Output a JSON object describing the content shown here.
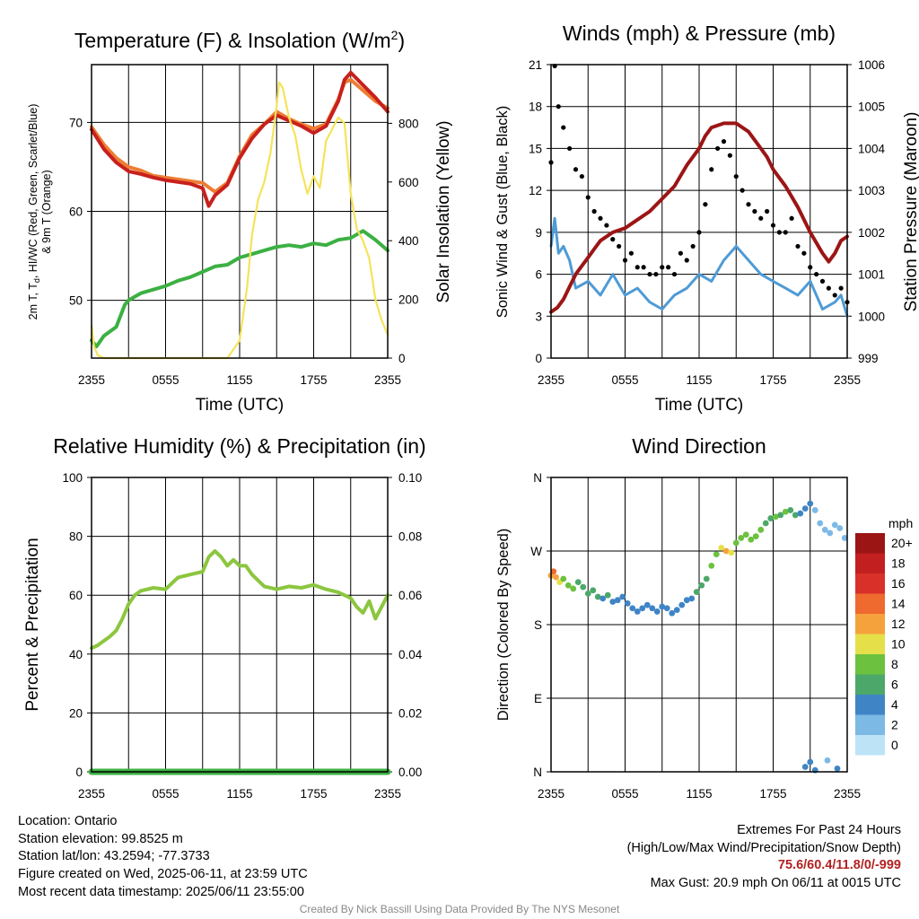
{
  "colors": {
    "temperature_red": "#c8201d",
    "temperature_orange": "#ee7d33",
    "dewpoint_green": "#3cb043",
    "insolation_yellow": "#f5e35a",
    "sonic_wind_blue": "#4e9bd6",
    "gust_black": "#000000",
    "pressure_maroon": "#9c1515",
    "humidity_green": "#8cc63f",
    "precip_green": "#3cb043"
  },
  "chart_data": [
    {
      "type": "line",
      "title": "Temperature (F) & Insolation (W/m²)",
      "xlabel": "Time (UTC)",
      "ylabel": "2m T, T_d, HI/WC (Red, Green, Scarlet/Blue) & 9m T (Orange)",
      "ylabel_line1": "2m T, T",
      "ylabel_sub": "d",
      "ylabel_line1_rest": ", HI/WC (Red, Green, Scarlet/Blue)",
      "ylabel_line2": "& 9m T (Orange)",
      "y2label": "Solar Insolation (Yellow)",
      "x_ticks": [
        "2355",
        "0555",
        "1155",
        "1755",
        "2355"
      ],
      "xlim": [
        0,
        24
      ],
      "ylim": [
        43.5,
        76.5
      ],
      "y_ticks": [
        50,
        60,
        70
      ],
      "y2lim": [
        0,
        1000
      ],
      "y2_ticks": [
        0,
        200,
        400,
        600,
        800
      ],
      "grid": true,
      "series": [
        {
          "name": "9m T",
          "color": "#ee7d33",
          "axis": "left",
          "x": [
            0,
            1,
            2,
            3,
            4,
            5,
            6,
            7,
            8,
            9,
            10,
            11,
            12,
            13,
            14,
            15,
            16,
            17,
            18,
            19,
            20,
            20.5,
            21,
            22,
            23,
            24
          ],
          "y": [
            69.5,
            67.5,
            66,
            65,
            64.6,
            64,
            63.8,
            63.6,
            63.4,
            63.2,
            62.2,
            63.2,
            66.2,
            68.6,
            69.8,
            71.2,
            70.4,
            69.8,
            69.3,
            69.8,
            72.6,
            74.5,
            74.8,
            73.6,
            72.4,
            71.6
          ]
        },
        {
          "name": "2m T",
          "color": "#c8201d",
          "axis": "left",
          "x": [
            0,
            1,
            2,
            3,
            4,
            5,
            6,
            7,
            8,
            9,
            9.5,
            10,
            11,
            12,
            13,
            14,
            15,
            16,
            17,
            18,
            19,
            20,
            20.5,
            21,
            22,
            23,
            24
          ],
          "y": [
            69.2,
            67,
            65.5,
            64.5,
            64.2,
            63.8,
            63.5,
            63.3,
            63.1,
            62.6,
            60.6,
            61.8,
            63,
            66,
            68.2,
            69.8,
            70.8,
            70.2,
            69.6,
            68.8,
            69.6,
            72.4,
            74.8,
            75.6,
            74.2,
            72.8,
            71.2
          ]
        },
        {
          "name": "Td",
          "color": "#3cb043",
          "axis": "left",
          "x": [
            0,
            0.4,
            1,
            1.5,
            2,
            2.7,
            3,
            3.5,
            4,
            5,
            6,
            7,
            8,
            9,
            10,
            11,
            12,
            13,
            14,
            15,
            16,
            17,
            18,
            19,
            20,
            21,
            22,
            23,
            24
          ],
          "y": [
            45.5,
            44.8,
            46,
            46.5,
            47,
            49.5,
            50,
            50.4,
            50.8,
            51.2,
            51.6,
            52.2,
            52.6,
            53.2,
            53.8,
            54,
            54.8,
            55.2,
            55.6,
            56,
            56.2,
            56,
            56.4,
            56.2,
            56.8,
            57,
            57.8,
            56.8,
            55.6
          ]
        },
        {
          "name": "Insolation",
          "color": "#f5e35a",
          "axis": "right",
          "x": [
            0,
            0.2,
            0.5,
            1,
            2,
            4,
            6,
            8,
            9,
            10,
            11,
            12,
            12.6,
            13,
            13.5,
            14,
            14.5,
            15,
            15.2,
            15.5,
            16,
            16.5,
            17,
            17.5,
            18,
            18.5,
            19,
            19.5,
            20,
            20.5,
            21,
            21.5,
            22,
            22.5,
            23,
            23.5,
            24
          ],
          "y": [
            110,
            40,
            10,
            0,
            0,
            0,
            0,
            0,
            0,
            0,
            0,
            60,
            240,
            420,
            540,
            600,
            700,
            860,
            940,
            920,
            820,
            760,
            640,
            560,
            620,
            580,
            740,
            780,
            820,
            800,
            560,
            440,
            400,
            340,
            200,
            130,
            80
          ]
        }
      ]
    },
    {
      "type": "line",
      "title": "Winds (mph) & Pressure (mb)",
      "xlabel": "Time (UTC)",
      "ylabel": "Sonic Wind & Gust (Blue, Black)",
      "y2label": "Station Pressure (Maroon)",
      "x_ticks": [
        "2355",
        "0555",
        "1155",
        "1755",
        "2355"
      ],
      "xlim": [
        0,
        24
      ],
      "ylim": [
        0,
        21
      ],
      "y_ticks": [
        0,
        3,
        6,
        9,
        12,
        15,
        18,
        21
      ],
      "y2lim": [
        999,
        1006
      ],
      "y2_ticks": [
        999,
        1000,
        1001,
        1002,
        1003,
        1004,
        1005,
        1006
      ],
      "grid": true,
      "series": [
        {
          "name": "Sonic Wind",
          "color": "#4e9bd6",
          "axis": "left",
          "x": [
            0,
            0.3,
            0.6,
            1,
            1.5,
            2,
            3,
            4,
            5,
            6,
            7,
            8,
            9,
            10,
            11,
            12,
            13,
            14,
            15,
            16,
            17,
            18,
            19,
            20,
            21,
            22,
            23,
            23.5,
            24
          ],
          "y": [
            8,
            10,
            7.5,
            8,
            7,
            5,
            5.5,
            4.5,
            6,
            4.5,
            5,
            4,
            3.5,
            4.5,
            5,
            6,
            5.5,
            7,
            8,
            7,
            6,
            5.5,
            5,
            4.5,
            5.5,
            3.5,
            4,
            4.5,
            3
          ]
        },
        {
          "name": "Gust",
          "color": "#000000",
          "axis": "left",
          "style": "points",
          "x": [
            0,
            0.3,
            0.6,
            1,
            1.5,
            2,
            2.5,
            3,
            3.5,
            4,
            4.5,
            5,
            5.5,
            6,
            6.5,
            7,
            7.5,
            8,
            8.5,
            9,
            9.5,
            10,
            10.5,
            11,
            11.5,
            12,
            12.5,
            13,
            13.5,
            14,
            14.5,
            15,
            15.5,
            16,
            16.5,
            17,
            17.5,
            18,
            18.5,
            19,
            19.5,
            20,
            20.5,
            21,
            21.5,
            22,
            22.5,
            23,
            23.5,
            24
          ],
          "y": [
            14,
            20.9,
            18,
            16.5,
            15,
            13.5,
            13,
            11.5,
            10.5,
            10,
            9.5,
            8.5,
            8,
            7,
            7.5,
            6.5,
            6.5,
            6,
            6,
            6.5,
            6.5,
            6,
            7.5,
            7,
            8,
            9,
            11,
            13.5,
            15,
            15.5,
            14.5,
            13,
            12,
            11,
            10.5,
            10,
            10.5,
            9.5,
            9,
            9,
            10,
            8,
            7.5,
            6.5,
            6,
            5.5,
            5,
            4.5,
            5,
            4
          ]
        },
        {
          "name": "Station Pressure",
          "color": "#9c1515",
          "axis": "right",
          "x": [
            0,
            0.5,
            1,
            1.5,
            2,
            2.5,
            3,
            3.5,
            4,
            5,
            6,
            7,
            8,
            9,
            10,
            11,
            12,
            12.5,
            13,
            14,
            15,
            16,
            16.5,
            17,
            17.5,
            18,
            19,
            20,
            21,
            22,
            22.5,
            23,
            23.5,
            24
          ],
          "y": [
            1000.1,
            1000.2,
            1000.4,
            1000.7,
            1001,
            1001.2,
            1001.4,
            1001.6,
            1001.8,
            1002,
            1002.1,
            1002.3,
            1002.5,
            1002.8,
            1003.1,
            1003.6,
            1004,
            1004.3,
            1004.5,
            1004.6,
            1004.6,
            1004.4,
            1004.2,
            1004,
            1003.8,
            1003.5,
            1003.1,
            1002.6,
            1002.0,
            1001.5,
            1001.3,
            1001.5,
            1001.8,
            1001.9
          ]
        }
      ]
    },
    {
      "type": "line",
      "title": "Relative Humidity (%) & Precipitation (in)",
      "xlabel": "",
      "ylabel": "Percent & Precipitation",
      "x_ticks": [
        "2355",
        "0555",
        "1155",
        "1755",
        "2355"
      ],
      "xlim": [
        0,
        24
      ],
      "ylim": [
        0,
        100
      ],
      "y_ticks": [
        0,
        20,
        40,
        60,
        80,
        100
      ],
      "y2lim": [
        0,
        0.1
      ],
      "y2_ticks": [
        "0.00",
        "0.02",
        "0.04",
        "0.06",
        "0.08",
        "0.10"
      ],
      "grid": true,
      "series": [
        {
          "name": "Relative Humidity",
          "color": "#8cc63f",
          "axis": "left",
          "x": [
            0,
            0.5,
            1,
            1.5,
            2,
            2.5,
            3,
            3.5,
            4,
            5,
            6,
            7,
            8,
            9,
            9.5,
            10,
            10.5,
            11,
            11.5,
            12,
            12.5,
            13,
            14,
            15,
            16,
            17,
            18,
            19,
            20,
            21,
            21.5,
            22,
            22.5,
            23,
            23.5,
            24
          ],
          "y": [
            42,
            43,
            44.5,
            46,
            48,
            52,
            57,
            60,
            61.5,
            62.5,
            62,
            66,
            67,
            68,
            73,
            75,
            73,
            70,
            72,
            70,
            70,
            67,
            63,
            62,
            63,
            62.5,
            63.5,
            62,
            61,
            59,
            56,
            54,
            58,
            52,
            56,
            60
          ]
        },
        {
          "name": "Precipitation",
          "color": "#3cb043",
          "axis": "right",
          "x": [
            0,
            24
          ],
          "y": [
            0,
            0
          ]
        }
      ]
    },
    {
      "type": "scatter",
      "title": "Wind Direction",
      "ylabel": "Direction (Colored By Speed)",
      "x_ticks": [
        "2355",
        "0555",
        "1155",
        "1755",
        "2355"
      ],
      "xlim": [
        0,
        24
      ],
      "ylim": [
        0,
        360
      ],
      "y_ticks": [
        "N",
        "E",
        "S",
        "W",
        "N"
      ],
      "y_tick_values": [
        0,
        90,
        180,
        270,
        360
      ],
      "grid": true,
      "colorbar": {
        "title": "mph",
        "labels": [
          "0",
          "2",
          "4",
          "6",
          "8",
          "10",
          "12",
          "14",
          "16",
          "18",
          "20+"
        ],
        "colors": [
          "#bde3f7",
          "#7db9e5",
          "#3f85c6",
          "#4ca86a",
          "#6cc13f",
          "#e5e04a",
          "#f6a23c",
          "#ee6a2e",
          "#d9302a",
          "#c21f21",
          "#9b1515"
        ]
      },
      "x": [
        0,
        0.2,
        0.4,
        0.7,
        1,
        1.4,
        1.8,
        2.2,
        2.6,
        3,
        3.4,
        3.8,
        4.2,
        4.6,
        5,
        5.4,
        5.8,
        6.2,
        6.6,
        7,
        7.4,
        7.8,
        8.2,
        8.6,
        9,
        9.4,
        9.8,
        10.2,
        10.6,
        11,
        11.4,
        11.8,
        12.2,
        12.6,
        13,
        13.4,
        13.8,
        14.2,
        14.6,
        15,
        15.4,
        15.8,
        16.2,
        16.6,
        17,
        17.4,
        17.8,
        18.2,
        18.6,
        19,
        19.4,
        19.8,
        20.2,
        20.6,
        21,
        21.4,
        21.8,
        22.2,
        22.6,
        23,
        23.4,
        23.8,
        20.6,
        21,
        21.4,
        22.4,
        23.2
      ],
      "y": [
        240,
        245,
        238,
        232,
        236,
        228,
        224,
        232,
        226,
        218,
        222,
        214,
        212,
        216,
        208,
        210,
        214,
        206,
        200,
        196,
        200,
        204,
        200,
        196,
        202,
        200,
        194,
        198,
        204,
        210,
        212,
        220,
        228,
        236,
        252,
        266,
        274,
        270,
        268,
        280,
        286,
        290,
        284,
        288,
        296,
        304,
        310,
        312,
        314,
        318,
        320,
        314,
        316,
        322,
        328,
        320,
        304,
        296,
        292,
        302,
        298,
        286,
        6,
        12,
        2,
        14,
        4
      ],
      "speed": [
        12,
        13,
        11,
        9,
        8,
        7,
        8,
        6,
        6,
        5,
        6,
        5,
        4,
        5,
        4,
        4,
        4,
        3,
        3,
        3,
        4,
        3,
        3,
        3,
        4,
        3,
        3,
        3,
        4,
        4,
        4,
        5,
        5,
        6,
        7,
        8,
        10,
        12,
        9,
        7,
        8,
        8,
        7,
        8,
        7,
        6,
        6,
        7,
        6,
        7,
        6,
        5,
        4,
        3,
        3,
        2,
        2,
        1,
        2,
        2,
        1,
        1,
        3,
        4,
        3,
        2,
        3
      ]
    }
  ],
  "footer": {
    "location": "Location: Ontario",
    "elevation": "Station elevation: 99.8525 m",
    "latlon": "Station lat/lon: 43.2594; -77.3733",
    "created": "Figure created on Wed, 2025-06-11, at 23:59 UTC",
    "recent": "Most recent data timestamp: 2025/06/11 23:55:00",
    "extremes_title": "Extremes For Past 24 Hours",
    "extremes_legend": "(High/Low/Max Wind/Precipitation/Snow Depth)",
    "extremes_values": "75.6/60.4/11.8/0/-999",
    "max_gust": "Max Gust: 20.9 mph On 06/11 at 0015 UTC",
    "credit": "Created By Nick Bassill Using Data Provided By The NYS Mesonet"
  }
}
